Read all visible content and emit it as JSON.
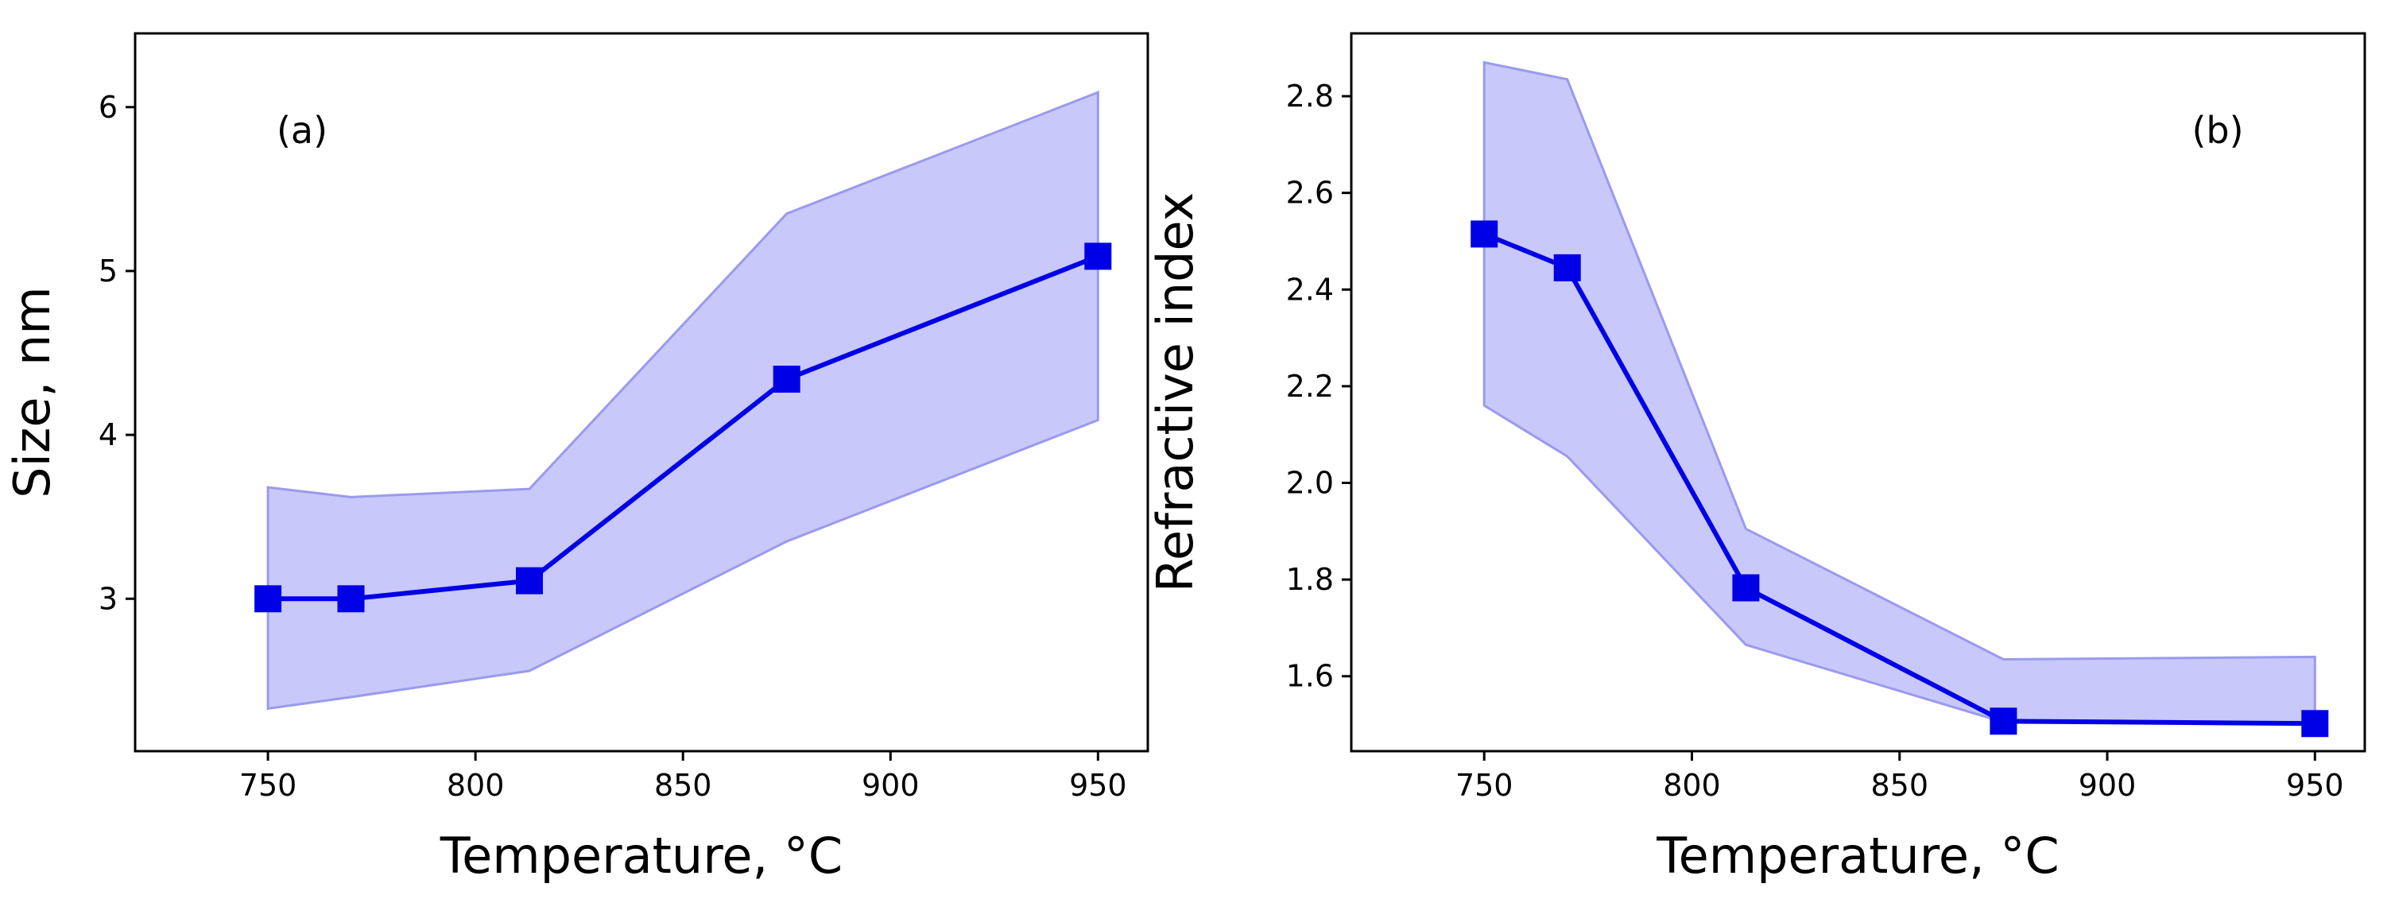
{
  "chart_data": [
    {
      "type": "line",
      "panel_label": "(a)",
      "title": "",
      "xlabel": "Temperature, °C",
      "ylabel": "Size, nm",
      "xlim": [
        718,
        962
      ],
      "ylim": [
        2.07,
        6.45
      ],
      "xticks": [
        750,
        800,
        850,
        900,
        950
      ],
      "xtick_labels": [
        "750",
        "800",
        "850",
        "900",
        "950"
      ],
      "yticks": [
        3,
        4,
        5,
        6
      ],
      "ytick_labels": [
        "3",
        "4",
        "5",
        "6"
      ],
      "grid": false,
      "series": [
        {
          "name": "Size",
          "color": "#0000e6",
          "marker": "square",
          "x": [
            750,
            770,
            813,
            875,
            950
          ],
          "values": [
            3.0,
            3.0,
            3.11,
            4.34,
            5.09
          ]
        }
      ],
      "band": {
        "color": "#c8c8fa",
        "edge_color": "#9a9aee",
        "x": [
          750,
          770,
          813,
          875,
          950
        ],
        "upper": [
          3.68,
          3.62,
          3.67,
          5.35,
          6.09
        ],
        "lower": [
          2.33,
          2.4,
          2.56,
          3.35,
          4.09
        ]
      }
    },
    {
      "type": "line",
      "panel_label": "(b)",
      "title": "",
      "xlabel": "Temperature, °C",
      "ylabel": "Refractive index",
      "xlim": [
        718,
        962
      ],
      "ylim": [
        1.445,
        2.93
      ],
      "xticks": [
        750,
        800,
        850,
        900,
        950
      ],
      "xtick_labels": [
        "750",
        "800",
        "850",
        "900",
        "950"
      ],
      "yticks": [
        1.6,
        1.8,
        2.0,
        2.2,
        2.4,
        2.6,
        2.8
      ],
      "ytick_labels": [
        "1.6",
        "1.8",
        "2.0",
        "2.2",
        "2.4",
        "2.6",
        "2.8"
      ],
      "grid": false,
      "series": [
        {
          "name": "Refractive index",
          "color": "#0000e6",
          "marker": "square",
          "x": [
            750,
            770,
            813,
            875,
            950
          ],
          "values": [
            2.515,
            2.445,
            1.783,
            1.507,
            1.502
          ]
        }
      ],
      "band": {
        "color": "#c8c8fa",
        "edge_color": "#9a9aee",
        "x": [
          750,
          770,
          813,
          875,
          950
        ],
        "upper": [
          2.87,
          2.835,
          1.905,
          1.635,
          1.64
        ],
        "lower": [
          2.16,
          2.055,
          1.665,
          1.505,
          1.502
        ]
      }
    }
  ]
}
